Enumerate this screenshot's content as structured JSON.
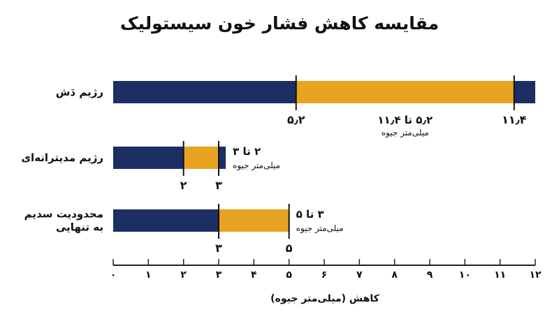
{
  "chart_data": {
    "type": "bar",
    "orientation": "horizontal",
    "stacked": true,
    "title": "مقایسه کاهش فشار خون سیستولیک",
    "xlabel": "کاهش (میلی‌متر جیوه)",
    "xlim": [
      0,
      12
    ],
    "xticks": [
      0,
      1,
      2,
      3,
      4,
      5,
      6,
      7,
      8,
      9,
      10,
      11,
      12
    ],
    "xtick_labels": [
      "۰",
      "۱",
      "۲",
      "۳",
      "۴",
      "۵",
      "۶",
      "۷",
      "۸",
      "۹",
      "۱۰",
      "۱۱",
      "۱۲"
    ],
    "colors": {
      "base": "#1b2f64",
      "range": "#e8a321",
      "marker": "#111111"
    },
    "categories": [
      {
        "label_lines": [
          "رژیم دَش"
        ],
        "bar_end": 12,
        "range_low": 5.2,
        "range_high": 11.4,
        "low_label": "۵٫۲",
        "high_label": "۱۱٫۴",
        "range_text": "۵٫۲ تا ۱۱٫۴",
        "unit_text": "میلی‌متر جیوه",
        "annotation_position": "center-below"
      },
      {
        "label_lines": [
          "رژیم مدیترانه‌ای"
        ],
        "bar_end": 3.2,
        "range_low": 2,
        "range_high": 3,
        "low_label": "۲",
        "high_label": "۳",
        "range_text": "۲ تا ۳",
        "unit_text": "میلی‌متر جیوه",
        "annotation_position": "right"
      },
      {
        "label_lines": [
          "محدودیت سدیم",
          "به تنهایی"
        ],
        "bar_end": 5,
        "range_low": 3,
        "range_high": 5,
        "low_label": "۳",
        "high_label": "۵",
        "range_text": "۳ تا ۵",
        "unit_text": "میلی‌متر جیوه",
        "annotation_position": "right"
      }
    ]
  }
}
